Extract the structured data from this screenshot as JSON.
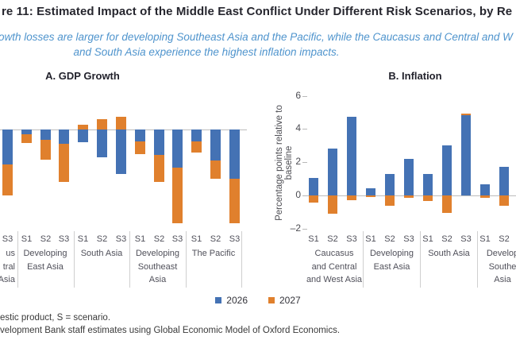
{
  "title": "re 11: Estimated Impact of the Middle East Conflict Under Different Risk Scenarios, by Re",
  "subtitle": {
    "line1": "owth losses are larger for developing Southeast Asia and the Pacific, while the Caucasus and Central and W",
    "line2": "and South Asia experience the highest inflation impacts."
  },
  "colors": {
    "series_2026": "#4472b4",
    "series_2027": "#e0802d",
    "subtitle_text": "#4f94cd",
    "title_text": "#26262e",
    "gridline": "#bcbcbc",
    "axis_text": "#50505a"
  },
  "legend": [
    {
      "label": "2026"
    },
    {
      "label": "2027"
    }
  ],
  "footnotes": {
    "line1": "estic product, S = scenario.",
    "line2": "velopment Bank staff estimates using Global Economic Model of Oxford Economics."
  },
  "chart_data": [
    {
      "type": "bar",
      "panel_title": "A. GDP Growth",
      "ylabel": "",
      "axis_visible": false,
      "ylim_estimated": [
        -2.2,
        0.5
      ],
      "series_names": [
        "2026",
        "2027"
      ],
      "stacked": true,
      "groups": [
        {
          "label_lines": [
            "us",
            "tral",
            "Asia"
          ],
          "cut": "left",
          "ticks": [
            "S3"
          ],
          "y2026": [
            -0.75
          ],
          "y2027": [
            -0.67
          ]
        },
        {
          "label_lines": [
            "Developing",
            "East Asia"
          ],
          "ticks": [
            "S1",
            "S2",
            "S3"
          ],
          "y2026": [
            -0.11,
            -0.22,
            -0.31
          ],
          "y2027": [
            -0.19,
            -0.43,
            -0.82
          ]
        },
        {
          "label_lines": [
            "South Asia"
          ],
          "ticks": [
            "S1",
            "S2",
            "S3"
          ],
          "y2026": [
            -0.27,
            -0.61,
            -0.97
          ],
          "y2027": [
            0.1,
            0.22,
            0.28
          ]
        },
        {
          "label_lines": [
            "Developing",
            "Southeast",
            "Asia"
          ],
          "ticks": [
            "S1",
            "S2",
            "S3"
          ],
          "y2026": [
            -0.25,
            -0.55,
            -0.82
          ],
          "y2027": [
            -0.28,
            -0.59,
            -1.21
          ]
        },
        {
          "label_lines": [
            "The Pacific"
          ],
          "ticks": [
            "S1",
            "S2",
            "S3"
          ],
          "y2026": [
            -0.26,
            -0.67,
            -1.07
          ],
          "y2027": [
            -0.24,
            -0.4,
            -0.96
          ]
        }
      ]
    },
    {
      "type": "bar",
      "panel_title": "B. Inflation",
      "ylabel": "Percentage points relative to baseline",
      "axis_visible": true,
      "yticks": [
        6,
        4,
        2,
        0,
        -2
      ],
      "ylim": [
        -2.6,
        6
      ],
      "series_names": [
        "2026",
        "2027"
      ],
      "stacked": true,
      "groups": [
        {
          "label_lines": [
            "Caucasus",
            "and Central",
            "and West Asia"
          ],
          "ticks": [
            "S1",
            "S2",
            "S3"
          ],
          "y2026": [
            1.05,
            2.8,
            4.75
          ],
          "y2027": [
            -0.45,
            -1.1,
            -0.3
          ]
        },
        {
          "label_lines": [
            "Developing",
            "East Asia"
          ],
          "ticks": [
            "S1",
            "S2",
            "S3"
          ],
          "y2026": [
            0.45,
            1.3,
            2.2
          ],
          "y2027": [
            -0.1,
            -0.6,
            -0.15
          ]
        },
        {
          "label_lines": [
            "South Asia"
          ],
          "ticks": [
            "S1",
            "S2",
            "S3"
          ],
          "y2026": [
            1.3,
            3.0,
            4.85
          ],
          "y2027": [
            -0.35,
            -1.05,
            0.1
          ]
        },
        {
          "label_lines": [
            "Develop",
            "Southe",
            "Asia"
          ],
          "cut": "right",
          "ticks": [
            "S1",
            "S2"
          ],
          "y2026": [
            0.65,
            1.7
          ],
          "y2027": [
            -0.15,
            -0.6
          ]
        }
      ]
    }
  ]
}
